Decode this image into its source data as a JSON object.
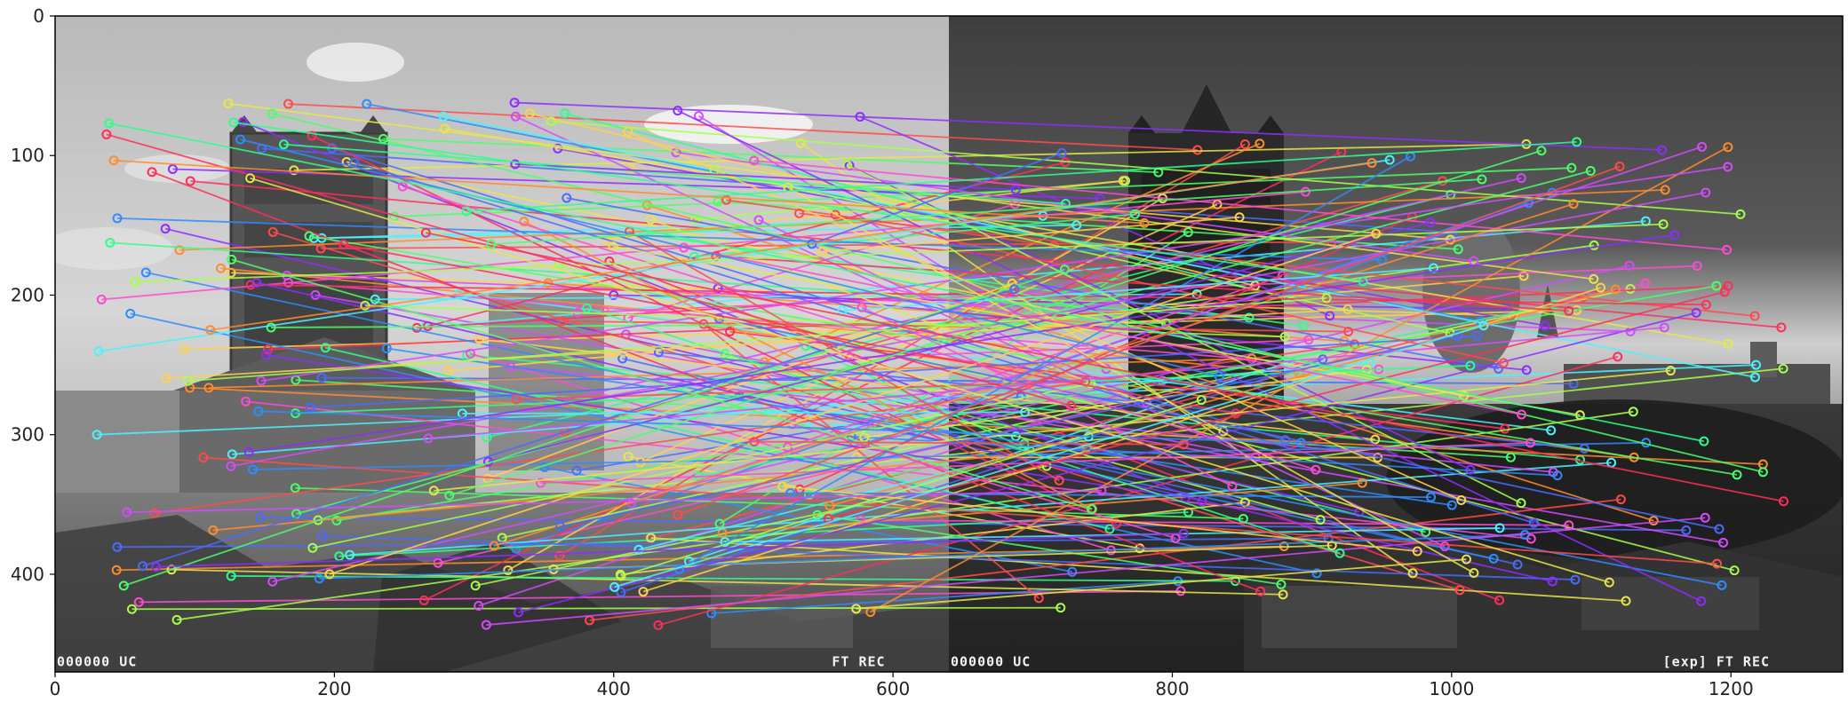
{
  "chart_data": {
    "type": "image",
    "xlim": [
      0,
      1280
    ],
    "ylim": [
      470,
      0
    ],
    "x_ticks": [
      0,
      200,
      400,
      600,
      800,
      1000,
      1200
    ],
    "y_ticks": [
      0,
      100,
      200,
      300,
      400
    ],
    "x_tick_labels": [
      "0",
      "200",
      "400",
      "600",
      "800",
      "1000",
      "1200"
    ],
    "y_tick_labels": [
      "0",
      "100",
      "200",
      "300",
      "400"
    ],
    "grid": false,
    "images": {
      "split_x": 640,
      "left_tone": "bright",
      "right_tone": "dark"
    },
    "overlay_text": [
      {
        "text": "000000 UC",
        "x": 0,
        "y": 466
      },
      {
        "text": "FT REC",
        "x": 555,
        "y": 466
      },
      {
        "text": "000000 UC",
        "x": 640,
        "y": 466
      },
      {
        "text": "[exp] FT REC",
        "x": 1150,
        "y": 466
      }
    ],
    "match_colors": [
      "#ff4b4b",
      "#4bff6a",
      "#4b6bff",
      "#ffd24b",
      "#d24bff",
      "#4bf2ff",
      "#ff8c2e",
      "#a7ff4b",
      "#ff4bd2",
      "#2e8cff",
      "#8c2eff",
      "#2eff8c",
      "#ff2e5a",
      "#e6e64b"
    ],
    "matches_shown": 240,
    "sample_matches": [
      {
        "x1": 167,
        "y1": 63,
        "x2": 818,
        "y2": 96
      },
      {
        "x1": 235,
        "y1": 88,
        "x2": 790,
        "y2": 112
      },
      {
        "x1": 148,
        "y1": 95,
        "x2": 1000,
        "y2": 155
      },
      {
        "x1": 126,
        "y1": 184,
        "x2": 1044,
        "y2": 215
      },
      {
        "x1": 166,
        "y1": 186,
        "x2": 1128,
        "y2": 226
      },
      {
        "x1": 30,
        "y1": 300,
        "x2": 1218,
        "y2": 250
      },
      {
        "x1": 44,
        "y1": 397,
        "x2": 880,
        "y2": 380
      },
      {
        "x1": 55,
        "y1": 425,
        "x2": 720,
        "y2": 424
      },
      {
        "x1": 60,
        "y1": 420,
        "x2": 806,
        "y2": 412
      },
      {
        "x1": 470,
        "y1": 428,
        "x2": 804,
        "y2": 405
      },
      {
        "x1": 400,
        "y1": 200,
        "x2": 1040,
        "y2": 210
      },
      {
        "x1": 295,
        "y1": 243,
        "x2": 1092,
        "y2": 318
      }
    ]
  }
}
